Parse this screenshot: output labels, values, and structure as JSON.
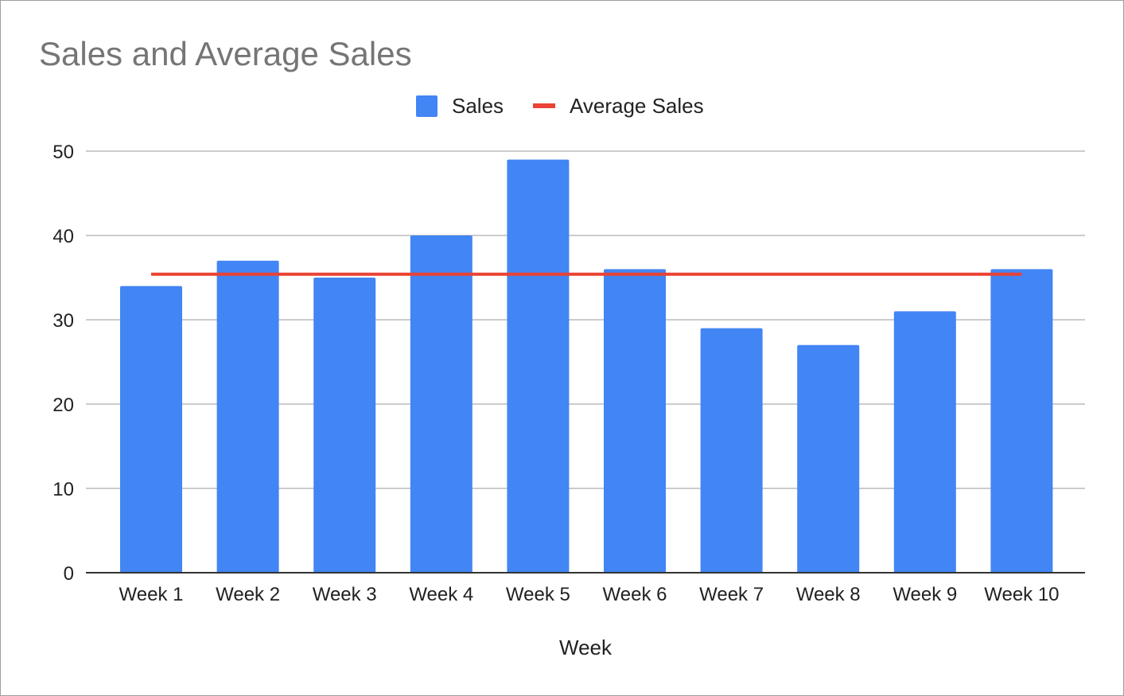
{
  "chart_data": {
    "type": "bar",
    "title": "Sales and Average Sales",
    "xlabel": "Week",
    "ylabel": "",
    "categories": [
      "Week 1",
      "Week 2",
      "Week 3",
      "Week 4",
      "Week 5",
      "Week 6",
      "Week 7",
      "Week 8",
      "Week 9",
      "Week 10"
    ],
    "series": [
      {
        "name": "Sales",
        "type": "bar",
        "color": "#4285f4",
        "values": [
          34,
          37,
          35,
          40,
          49,
          36,
          29,
          27,
          31,
          36
        ]
      },
      {
        "name": "Average Sales",
        "type": "line",
        "color": "#ea4335",
        "values": [
          35.4,
          35.4,
          35.4,
          35.4,
          35.4,
          35.4,
          35.4,
          35.4,
          35.4,
          35.4
        ]
      }
    ],
    "ylim": [
      0,
      50
    ],
    "yticks": [
      "0",
      "10",
      "20",
      "30",
      "40",
      "50"
    ],
    "grid": true,
    "legend_position": "top-center"
  }
}
